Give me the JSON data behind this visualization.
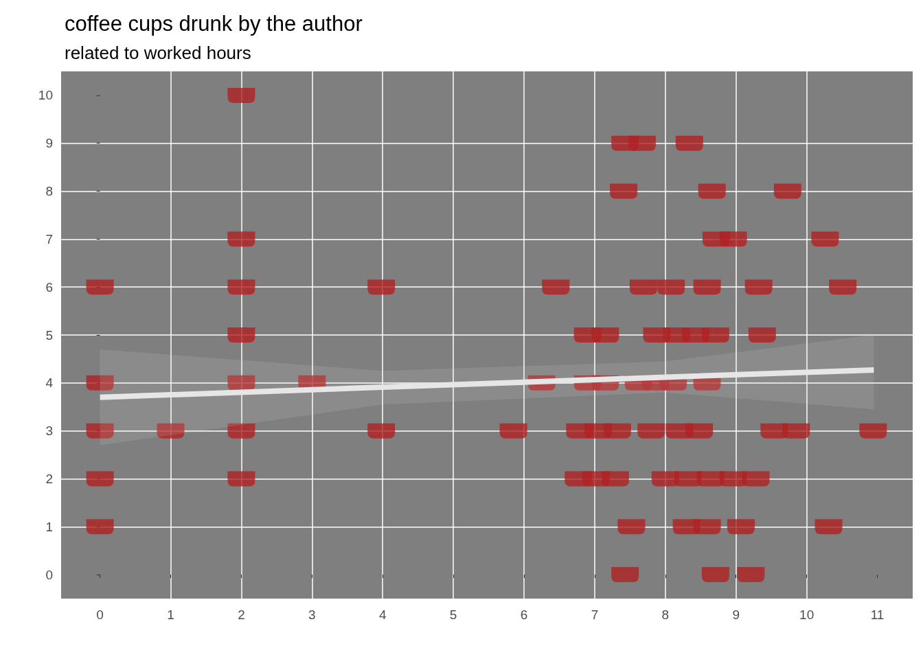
{
  "chart_data": {
    "type": "scatter",
    "title": "coffee cups drunk by the author",
    "subtitle": "related to worked hours",
    "xlim": [
      -0.55,
      11.5
    ],
    "ylim": [
      -0.5,
      10.5
    ],
    "xticks": [
      0,
      1,
      2,
      3,
      4,
      5,
      6,
      7,
      8,
      9,
      10,
      11
    ],
    "yticks": [
      0,
      1,
      2,
      3,
      4,
      5,
      6,
      7,
      8,
      9,
      10
    ],
    "grid": true,
    "series": [
      {
        "type": "scatter",
        "color": "#b22222",
        "x": [
          2,
          7.43,
          7.67,
          8.34,
          7.41,
          8.66,
          9.73,
          2,
          8.72,
          8.96,
          10.26,
          0,
          2,
          3.98,
          6.45,
          7.69,
          8.08,
          8.59,
          9.32,
          10.51,
          2,
          6.9,
          7.15,
          7.88,
          8.16,
          8.43,
          8.71,
          9.37,
          0,
          2,
          3,
          6.25,
          6.9,
          7.15,
          7.62,
          7.86,
          8.11,
          8.59,
          0,
          1,
          2,
          3.98,
          5.85,
          6.79,
          7.05,
          7.32,
          7.8,
          8.2,
          8.48,
          9.54,
          9.85,
          10.94,
          0,
          2,
          6.77,
          7.02,
          7.29,
          8.0,
          8.32,
          8.64,
          8.96,
          9.28,
          0,
          7.52,
          8.3,
          8.59,
          9.07,
          10.31,
          7.43,
          8.71,
          9.21
        ],
        "values": [
          10,
          9,
          9,
          9,
          8,
          8,
          8,
          7,
          7,
          7,
          7,
          6,
          6,
          6,
          6,
          6,
          6,
          6,
          6,
          6,
          5,
          5,
          5,
          5,
          5,
          5,
          5,
          5,
          4,
          4,
          4,
          4,
          4,
          4,
          4,
          4,
          4,
          4,
          3,
          3,
          3,
          3,
          3,
          3,
          3,
          3,
          3,
          3,
          3,
          3,
          3,
          3,
          2,
          2,
          2,
          2,
          2,
          2,
          2,
          2,
          2,
          2,
          1,
          1,
          1,
          1,
          1,
          1,
          0,
          0,
          0
        ]
      },
      {
        "type": "line",
        "color": "#e6e6e6",
        "x": [
          0,
          4,
          8,
          10.95
        ],
        "values": [
          3.7,
          3.91,
          4.12,
          4.27
        ],
        "lower": [
          2.7,
          3.55,
          3.8,
          3.45
        ],
        "upper": [
          4.7,
          4.25,
          4.45,
          5.0
        ]
      }
    ]
  }
}
